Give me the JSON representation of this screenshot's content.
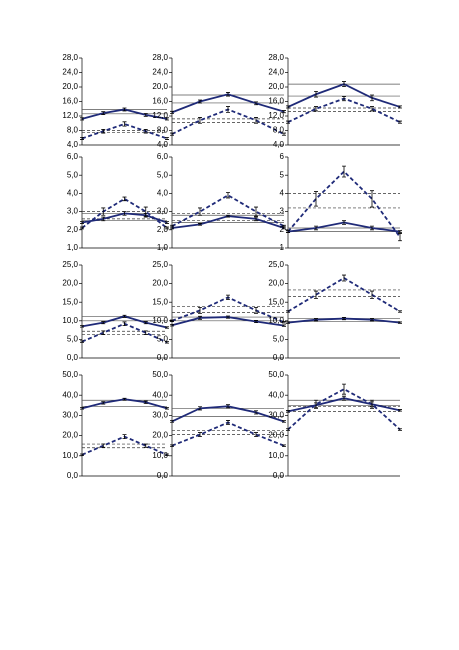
{
  "chart_data": [
    {
      "type": "line",
      "ylim": [
        4,
        28
      ],
      "yticks": [
        {
          "value": 4,
          "label": "4,0"
        },
        {
          "value": 8,
          "label": "8,0"
        },
        {
          "value": 12,
          "label": "12,0"
        },
        {
          "value": 16,
          "label": "16,0"
        },
        {
          "value": 20,
          "label": "20,0"
        },
        {
          "value": 24,
          "label": "24,0"
        },
        {
          "value": 28,
          "label": "28,0"
        }
      ],
      "series": [
        {
          "color": "#1f2a78",
          "dashed": false,
          "values": [
            11.2,
            12.8,
            13.8,
            12.3,
            11.2
          ],
          "errors": [
            0.3,
            0.4,
            0.4,
            0.4,
            0.3
          ]
        },
        {
          "color": "#1f2a78",
          "dashed": true,
          "values": [
            5.8,
            7.8,
            9.8,
            7.8,
            5.8
          ],
          "errors": [
            0.3,
            0.5,
            0.6,
            0.5,
            0.3
          ]
        }
      ],
      "hlines": [
        {
          "value": 12.6,
          "dashed": false
        },
        {
          "value": 13.8,
          "dashed": false
        },
        {
          "value": 7.5,
          "dashed": true
        },
        {
          "value": 8.0,
          "dashed": true
        }
      ]
    },
    {
      "type": "line",
      "ylim": [
        4,
        28
      ],
      "yticks": [
        {
          "value": 4,
          "label": "4,0"
        },
        {
          "value": 8,
          "label": "8,0"
        },
        {
          "value": 12,
          "label": "12,0"
        },
        {
          "value": 16,
          "label": "16,0"
        },
        {
          "value": 20,
          "label": "20,0"
        },
        {
          "value": 24,
          "label": "24,0"
        },
        {
          "value": 28,
          "label": "28,0"
        }
      ],
      "series": [
        {
          "color": "#1f2a78",
          "dashed": false,
          "values": [
            13,
            16,
            18,
            15.5,
            13.2
          ],
          "errors": [
            0.3,
            0.4,
            0.5,
            0.4,
            0.3
          ]
        },
        {
          "color": "#1f2a78",
          "dashed": true,
          "values": [
            7,
            10.8,
            13.8,
            10.8,
            7
          ],
          "errors": [
            0.3,
            0.8,
            0.8,
            0.8,
            0.3
          ]
        }
      ],
      "hlines": [
        {
          "value": 15.6,
          "dashed": false
        },
        {
          "value": 17.8,
          "dashed": false
        },
        {
          "value": 10.2,
          "dashed": true
        },
        {
          "value": 11.2,
          "dashed": true
        }
      ]
    },
    {
      "type": "line",
      "ylim": [
        4,
        28
      ],
      "yticks": [
        {
          "value": 4,
          "label": "4,0"
        },
        {
          "value": 8,
          "label": "8,0"
        },
        {
          "value": 12,
          "label": "12,0"
        },
        {
          "value": 16,
          "label": "16,0"
        },
        {
          "value": 20,
          "label": "20,0"
        },
        {
          "value": 24,
          "label": "24,0"
        },
        {
          "value": 28,
          "label": "28,0"
        }
      ],
      "series": [
        {
          "color": "#1f2a78",
          "dashed": false,
          "values": [
            14.5,
            18,
            20.8,
            17,
            14.5
          ],
          "errors": [
            0.3,
            0.8,
            0.7,
            0.8,
            0.3
          ]
        },
        {
          "color": "#1f2a78",
          "dashed": true,
          "values": [
            10.3,
            14,
            16.8,
            14,
            10.3
          ],
          "errors": [
            0.3,
            0.6,
            0.6,
            0.6,
            0.3
          ]
        }
      ],
      "hlines": [
        {
          "value": 17.5,
          "dashed": false
        },
        {
          "value": 20.8,
          "dashed": false
        },
        {
          "value": 13.2,
          "dashed": true
        },
        {
          "value": 14.2,
          "dashed": true
        }
      ]
    },
    {
      "type": "line",
      "ylim": [
        1,
        6
      ],
      "yticks": [
        {
          "value": 1,
          "label": "1,0"
        },
        {
          "value": 2,
          "label": "2,0"
        },
        {
          "value": 3,
          "label": "3,0"
        },
        {
          "value": 4,
          "label": "4,0"
        },
        {
          "value": 5,
          "label": "5,0"
        },
        {
          "value": 6,
          "label": "6,0"
        }
      ],
      "series": [
        {
          "color": "#1f2a78",
          "dashed": false,
          "values": [
            2.4,
            2.6,
            2.9,
            2.8,
            2.4
          ],
          "errors": [
            0.05,
            0.1,
            0.1,
            0.1,
            0.05
          ]
        },
        {
          "color": "#1f2a78",
          "dashed": true,
          "values": [
            2.1,
            3.0,
            3.7,
            3.0,
            2.1
          ],
          "errors": [
            0.05,
            0.2,
            0.1,
            0.25,
            0.05
          ]
        }
      ],
      "hlines": [
        {
          "value": 2.5,
          "dashed": false
        },
        {
          "value": 2.9,
          "dashed": false
        },
        {
          "value": 2.6,
          "dashed": true
        },
        {
          "value": 3.0,
          "dashed": true
        }
      ]
    },
    {
      "type": "line",
      "ylim": [
        1,
        6
      ],
      "yticks": [
        {
          "value": 1,
          "label": "1,0"
        },
        {
          "value": 2,
          "label": "2,0"
        },
        {
          "value": 3,
          "label": "3,0"
        },
        {
          "value": 4,
          "label": "4,0"
        },
        {
          "value": 5,
          "label": "5,0"
        },
        {
          "value": 6,
          "label": "6,0"
        }
      ],
      "series": [
        {
          "color": "#1f2a78",
          "dashed": false,
          "values": [
            2.1,
            2.3,
            2.75,
            2.6,
            2.1
          ],
          "errors": [
            0.05,
            0.05,
            0.05,
            0.1,
            0.05
          ]
        },
        {
          "color": "#1f2a78",
          "dashed": true,
          "values": [
            2.2,
            3.0,
            3.9,
            3.0,
            2.2
          ],
          "errors": [
            0.05,
            0.2,
            0.15,
            0.25,
            0.05
          ]
        }
      ],
      "hlines": [
        {
          "value": 2.4,
          "dashed": false
        },
        {
          "value": 2.8,
          "dashed": false
        },
        {
          "value": 2.5,
          "dashed": true
        },
        {
          "value": 2.9,
          "dashed": true
        }
      ]
    },
    {
      "type": "line",
      "ylim": [
        1,
        6
      ],
      "yticks": [
        1,
        2,
        3,
        4,
        5,
        6
      ],
      "series": [
        {
          "color": "#1f2a78",
          "dashed": false,
          "values": [
            1.9,
            2.1,
            2.4,
            2.1,
            1.9
          ],
          "errors": [
            0.05,
            0.1,
            0.1,
            0.1,
            0.05
          ]
        },
        {
          "color": "#1f2a78",
          "dashed": true,
          "values": [
            1.9,
            3.7,
            5.2,
            3.7,
            1.6
          ],
          "errors": [
            0.05,
            0.4,
            0.3,
            0.45,
            0.2
          ]
        }
      ],
      "hlines": [
        {
          "value": 1.9,
          "dashed": false
        },
        {
          "value": 2.1,
          "dashed": false
        },
        {
          "value": 3.2,
          "dashed": true
        },
        {
          "value": 4.0,
          "dashed": true
        }
      ]
    },
    {
      "type": "line",
      "ylim": [
        0,
        25
      ],
      "yticks": [
        {
          "value": 0,
          "label": "0,0"
        },
        {
          "value": 5,
          "label": "5,0"
        },
        {
          "value": 10,
          "label": "10,0"
        },
        {
          "value": 15,
          "label": "15,0"
        },
        {
          "value": 20,
          "label": "20,0"
        },
        {
          "value": 25,
          "label": "25,0"
        }
      ],
      "series": [
        {
          "color": "#1f2a78",
          "dashed": false,
          "values": [
            8.5,
            9.5,
            11.2,
            9.5,
            8.2
          ],
          "errors": [
            0.2,
            0.3,
            0.3,
            0.3,
            0.2
          ]
        },
        {
          "color": "#1f2a78",
          "dashed": true,
          "values": [
            4.4,
            6.8,
            9.2,
            6.8,
            4.2
          ],
          "errors": [
            0.2,
            0.5,
            0.5,
            0.5,
            0.2
          ]
        }
      ],
      "hlines": [
        {
          "value": 10,
          "dashed": false
        },
        {
          "value": 11.2,
          "dashed": false
        },
        {
          "value": 6.3,
          "dashed": true
        },
        {
          "value": 7.2,
          "dashed": true
        }
      ]
    },
    {
      "type": "line",
      "ylim": [
        0,
        25
      ],
      "yticks": [
        {
          "value": 0,
          "label": "0,0"
        },
        {
          "value": 5,
          "label": "5,0"
        },
        {
          "value": 10,
          "label": "10,0"
        },
        {
          "value": 15,
          "label": "15,0"
        },
        {
          "value": 20,
          "label": "20,0"
        },
        {
          "value": 25,
          "label": "25,0"
        }
      ],
      "series": [
        {
          "color": "#1f2a78",
          "dashed": false,
          "values": [
            8.8,
            10.8,
            11,
            9.8,
            8.7
          ],
          "errors": [
            0.2,
            0.4,
            0.3,
            0.3,
            0.2
          ]
        },
        {
          "color": "#1f2a78",
          "dashed": true,
          "values": [
            10,
            12.8,
            16.3,
            12.8,
            9.6
          ],
          "errors": [
            0.2,
            0.8,
            0.6,
            0.8,
            0.2
          ]
        }
      ],
      "hlines": [
        {
          "value": 10,
          "dashed": false
        },
        {
          "value": 11,
          "dashed": false
        },
        {
          "value": 12.2,
          "dashed": true
        },
        {
          "value": 13.8,
          "dashed": true
        }
      ]
    },
    {
      "type": "line",
      "ylim": [
        0,
        25
      ],
      "yticks": [
        {
          "value": 0,
          "label": "0,0"
        },
        {
          "value": 5,
          "label": "5,0"
        },
        {
          "value": 10,
          "label": "10,0"
        },
        {
          "value": 15,
          "label": "15,0"
        },
        {
          "value": 20,
          "label": "20,0"
        },
        {
          "value": 25,
          "label": "25,0"
        }
      ],
      "series": [
        {
          "color": "#1f2a78",
          "dashed": false,
          "values": [
            9.5,
            10.3,
            10.6,
            10.3,
            9.5
          ],
          "errors": [
            0.2,
            0.3,
            0.3,
            0.3,
            0.2
          ]
        },
        {
          "color": "#1f2a78",
          "dashed": true,
          "values": [
            12.5,
            17,
            21.5,
            17,
            12.5
          ],
          "errors": [
            0.2,
            1,
            0.8,
            1,
            0.2
          ]
        }
      ],
      "hlines": [
        {
          "value": 9.8,
          "dashed": false
        },
        {
          "value": 10.6,
          "dashed": false
        },
        {
          "value": 16.5,
          "dashed": true
        },
        {
          "value": 18.3,
          "dashed": true
        }
      ]
    },
    {
      "type": "line",
      "ylim": [
        0,
        50
      ],
      "yticks": [
        {
          "value": 0,
          "label": "0,0"
        },
        {
          "value": 10,
          "label": "10,0"
        },
        {
          "value": 20,
          "label": "20,0"
        },
        {
          "value": 30,
          "label": "30,0"
        },
        {
          "value": 40,
          "label": "40,0"
        },
        {
          "value": 50,
          "label": "50,0"
        }
      ],
      "series": [
        {
          "color": "#1f2a78",
          "dashed": false,
          "values": [
            33.5,
            36.2,
            38,
            36.5,
            33.5
          ],
          "errors": [
            0.4,
            0.6,
            0.5,
            0.6,
            0.4
          ]
        },
        {
          "color": "#1f2a78",
          "dashed": true,
          "values": [
            10.5,
            15,
            19.5,
            15,
            10.5
          ],
          "errors": [
            0.4,
            0.8,
            1,
            0.8,
            0.4
          ]
        }
      ],
      "hlines": [
        {
          "value": 34.5,
          "dashed": false
        },
        {
          "value": 37.5,
          "dashed": false
        },
        {
          "value": 14,
          "dashed": true
        },
        {
          "value": 15.8,
          "dashed": true
        }
      ]
    },
    {
      "type": "line",
      "ylim": [
        0,
        50
      ],
      "yticks": [
        {
          "value": 0,
          "label": "0,0"
        },
        {
          "value": 10,
          "label": "10,0"
        },
        {
          "value": 20,
          "label": "20,0"
        },
        {
          "value": 30,
          "label": "30,0"
        },
        {
          "value": 40,
          "label": "40,0"
        },
        {
          "value": 50,
          "label": "50,0"
        }
      ],
      "series": [
        {
          "color": "#1f2a78",
          "dashed": false,
          "values": [
            27,
            33.5,
            34.5,
            31.5,
            27
          ],
          "errors": [
            0.4,
            0.8,
            0.8,
            0.8,
            0.4
          ]
        },
        {
          "color": "#1f2a78",
          "dashed": true,
          "values": [
            15,
            20.5,
            26.5,
            20.5,
            15
          ],
          "errors": [
            0.4,
            1,
            1,
            1,
            0.4
          ]
        }
      ],
      "hlines": [
        {
          "value": 29.5,
          "dashed": false
        },
        {
          "value": 33.5,
          "dashed": false
        },
        {
          "value": 20.5,
          "dashed": true
        },
        {
          "value": 22.5,
          "dashed": true
        }
      ]
    },
    {
      "type": "line",
      "ylim": [
        0,
        50
      ],
      "yticks": [
        {
          "value": 0,
          "label": "0,0"
        },
        {
          "value": 10,
          "label": "10,0"
        },
        {
          "value": 20,
          "label": "20,0"
        },
        {
          "value": 30,
          "label": "30,0"
        },
        {
          "value": 40,
          "label": "40,0"
        },
        {
          "value": 50,
          "label": "50,0"
        }
      ],
      "series": [
        {
          "color": "#1f2a78",
          "dashed": false,
          "values": [
            32,
            35,
            38.5,
            35.5,
            32.5
          ],
          "errors": [
            0.4,
            1.2,
            1,
            1.2,
            0.4
          ]
        },
        {
          "color": "#1f2a78",
          "dashed": true,
          "values": [
            23,
            35.5,
            43,
            35.5,
            23
          ],
          "errors": [
            0.4,
            2,
            2.5,
            2,
            0.4
          ]
        }
      ],
      "hlines": [
        {
          "value": 35,
          "dashed": false
        },
        {
          "value": 37.5,
          "dashed": false
        },
        {
          "value": 32,
          "dashed": true
        },
        {
          "value": 34.5,
          "dashed": true
        }
      ]
    }
  ]
}
